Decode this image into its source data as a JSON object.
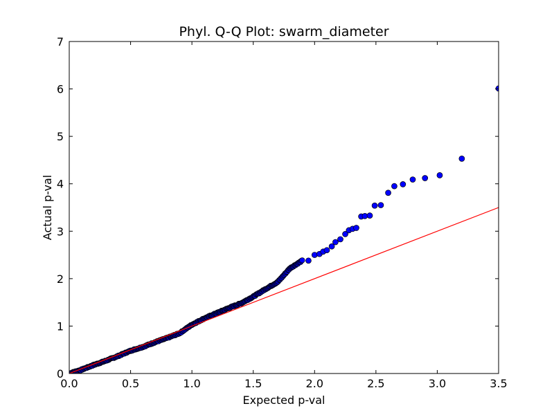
{
  "chart_data": {
    "type": "scatter",
    "title": "Phyl. Q-Q Plot: swarm_diameter",
    "xlabel": "Expected p-val",
    "ylabel": "Actual p-val",
    "xlim": [
      0.0,
      3.5
    ],
    "ylim": [
      0,
      7
    ],
    "xticks": [
      "0.0",
      "0.5",
      "1.0",
      "1.5",
      "2.0",
      "2.5",
      "3.0",
      "3.5"
    ],
    "yticks": [
      "0",
      "1",
      "2",
      "3",
      "4",
      "5",
      "6",
      "7"
    ],
    "grid": false,
    "legend": "none",
    "series": [
      {
        "type": "scatter",
        "color": "#0000ff",
        "edgecolor": "#000000",
        "trend": [
          [
            0.0,
            0.0
          ],
          [
            0.1,
            0.08
          ],
          [
            0.2,
            0.18
          ],
          [
            0.3,
            0.27
          ],
          [
            0.4,
            0.37
          ],
          [
            0.5,
            0.48
          ],
          [
            0.6,
            0.56
          ],
          [
            0.7,
            0.66
          ],
          [
            0.8,
            0.75
          ],
          [
            0.9,
            0.85
          ],
          [
            1.0,
            1.03
          ],
          [
            1.1,
            1.16
          ],
          [
            1.2,
            1.27
          ],
          [
            1.3,
            1.38
          ],
          [
            1.4,
            1.48
          ],
          [
            1.5,
            1.62
          ],
          [
            1.6,
            1.78
          ],
          [
            1.7,
            1.93
          ],
          [
            1.8,
            2.22
          ],
          [
            1.9,
            2.38
          ]
        ],
        "tail": [
          [
            1.95,
            2.38
          ],
          [
            2.0,
            2.5
          ],
          [
            2.04,
            2.52
          ],
          [
            2.07,
            2.57
          ],
          [
            2.1,
            2.6
          ],
          [
            2.14,
            2.68
          ],
          [
            2.17,
            2.77
          ],
          [
            2.21,
            2.83
          ],
          [
            2.25,
            2.94
          ],
          [
            2.28,
            3.02
          ],
          [
            2.31,
            3.05
          ],
          [
            2.34,
            3.07
          ],
          [
            2.38,
            3.31
          ],
          [
            2.41,
            3.32
          ],
          [
            2.45,
            3.33
          ],
          [
            2.49,
            3.54
          ],
          [
            2.54,
            3.55
          ],
          [
            2.6,
            3.81
          ],
          [
            2.65,
            3.95
          ],
          [
            2.72,
            3.99
          ],
          [
            2.8,
            4.09
          ],
          [
            2.9,
            4.12
          ],
          [
            3.02,
            4.18
          ],
          [
            3.2,
            4.53
          ],
          [
            3.5,
            6.01
          ]
        ]
      },
      {
        "type": "line",
        "color": "#ff0000",
        "x": [
          0.0,
          3.5
        ],
        "y": [
          0.0,
          3.5
        ]
      }
    ]
  }
}
